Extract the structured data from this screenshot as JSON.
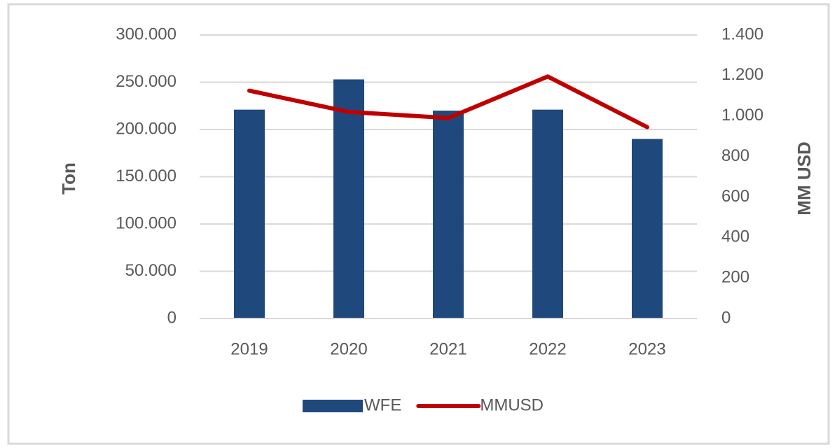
{
  "chart_data": {
    "type": "bar",
    "categories": [
      "2019",
      "2020",
      "2021",
      "2022",
      "2023"
    ],
    "series": [
      {
        "name": "WFE",
        "type": "bar",
        "color": "#1f497d",
        "values": [
          221000,
          253000,
          220000,
          221000,
          190000
        ]
      },
      {
        "name": "MMUSD",
        "type": "line",
        "axis": "y2",
        "color": "#c00000",
        "values": [
          1125,
          1020,
          990,
          1195,
          945
        ]
      }
    ],
    "ylabel": "Ton",
    "y2label": "MM USD",
    "ylim": [
      0,
      300000
    ],
    "yticks": [
      0,
      {
        "value": 50000,
        "label": "50.000"
      },
      {
        "value": 100000,
        "label": "100.000"
      },
      {
        "value": 150000,
        "label": "150.000"
      },
      {
        "value": 200000,
        "label": "200.000"
      },
      {
        "value": 250000,
        "label": "250.000"
      },
      {
        "value": 300000,
        "label": "300.000"
      }
    ],
    "y2lim": [
      0,
      1400
    ],
    "y2ticks": [
      0,
      200,
      400,
      600,
      800,
      {
        "value": 1000,
        "label": "1.000"
      },
      {
        "value": 1200,
        "label": "1.200"
      },
      {
        "value": 1400,
        "label": "1.400"
      }
    ],
    "grid": true,
    "legend": "bottom"
  }
}
